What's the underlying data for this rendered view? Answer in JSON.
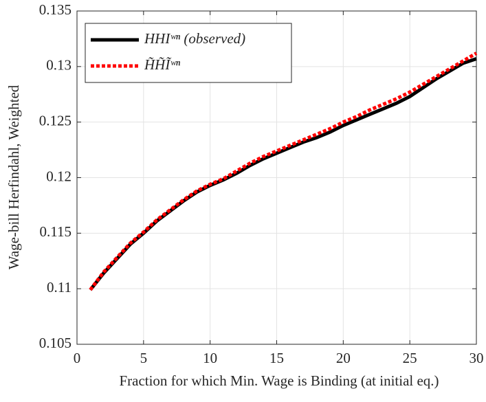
{
  "chart_data": {
    "type": "line",
    "xlabel": "Fraction for which Min. Wage is Binding (at initial eq.)",
    "ylabel": "Wage-bill Herfindahl, Weighted",
    "x": [
      1,
      2,
      3,
      4,
      5,
      6,
      7,
      8,
      9,
      10,
      11,
      12,
      13,
      14,
      15,
      16,
      17,
      18,
      19,
      20,
      21,
      22,
      23,
      24,
      25,
      26,
      27,
      28,
      29,
      30
    ],
    "series": [
      {
        "name": "HHIʷⁿ (observed)",
        "color": "#000000",
        "values": [
          0.1099,
          0.1114,
          0.1127,
          0.114,
          0.115,
          0.1161,
          0.117,
          0.1179,
          0.1187,
          0.1193,
          0.1198,
          0.1204,
          0.1211,
          0.1217,
          0.1222,
          0.1227,
          0.1232,
          0.1236,
          0.1241,
          0.1247,
          0.1252,
          0.1257,
          0.1262,
          0.1267,
          0.1273,
          0.1281,
          0.1289,
          0.1296,
          0.1303,
          0.1307
        ]
      },
      {
        "name": "H̃H̃Ĩʷⁿ",
        "color": "#ff0000",
        "values": [
          0.1099,
          0.1115,
          0.1128,
          0.1141,
          0.1151,
          0.1162,
          0.1171,
          0.118,
          0.1188,
          0.1194,
          0.1199,
          0.1206,
          0.1213,
          0.1219,
          0.1224,
          0.1229,
          0.1234,
          0.1239,
          0.1244,
          0.125,
          0.1255,
          0.1261,
          0.1266,
          0.1271,
          0.1277,
          0.1284,
          0.1291,
          0.1298,
          0.1305,
          0.1312
        ]
      }
    ],
    "xlim": [
      0,
      30
    ],
    "xticks": [
      0,
      5,
      10,
      15,
      20,
      25,
      30
    ],
    "ylim": [
      0.105,
      0.135
    ],
    "yticks": [
      0.105,
      0.11,
      0.115,
      0.12,
      0.125,
      0.13,
      0.135
    ],
    "grid": true,
    "legend": "upper-left"
  }
}
